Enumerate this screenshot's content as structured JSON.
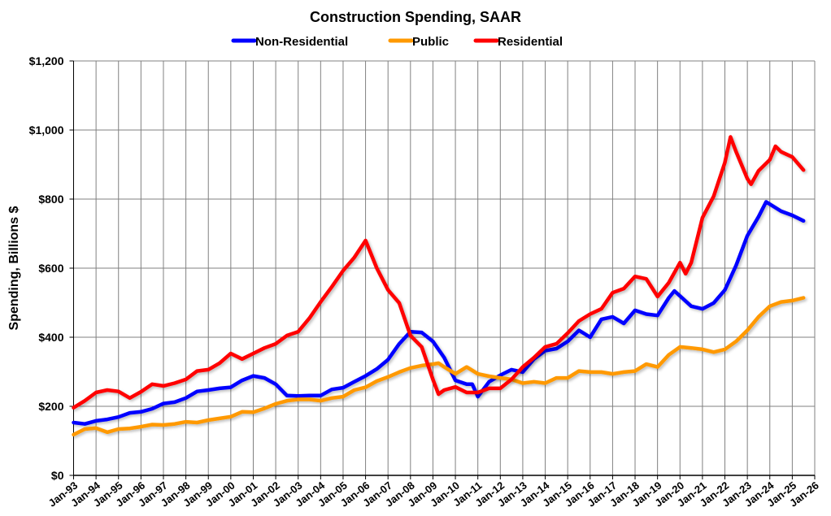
{
  "chart_data": {
    "type": "line",
    "title": "Construction Spending, SAAR",
    "ylabel": "Spending, Billions $",
    "xlabel": "",
    "ylim": [
      0,
      1200
    ],
    "xlim": [
      "1993-01",
      "2026-01"
    ],
    "yticks": [
      0,
      200,
      400,
      600,
      800,
      1000,
      1200
    ],
    "ytick_labels": [
      "$0",
      "$200",
      "$400",
      "$600",
      "$800",
      "$1,000",
      "$1,200"
    ],
    "xtick_labels": [
      "Jan-93",
      "Jan-94",
      "Jan-95",
      "Jan-96",
      "Jan-97",
      "Jan-98",
      "Jan-99",
      "Jan-00",
      "Jan-01",
      "Jan-02",
      "Jan-03",
      "Jan-04",
      "Jan-05",
      "Jan-06",
      "Jan-07",
      "Jan-08",
      "Jan-09",
      "Jan-10",
      "Jan-11",
      "Jan-12",
      "Jan-13",
      "Jan-14",
      "Jan-15",
      "Jan-16",
      "Jan-17",
      "Jan-18",
      "Jan-19",
      "Jan-20",
      "Jan-21",
      "Jan-22",
      "Jan-23",
      "Jan-24",
      "Jan-25",
      "Jan-26"
    ],
    "grid": true,
    "legend_position": "top",
    "series": [
      {
        "name": "Non-Residential",
        "color": "#0000ff",
        "points": [
          [
            "1993-01",
            153
          ],
          [
            "1993-07",
            149
          ],
          [
            "1994-01",
            158
          ],
          [
            "1994-07",
            162
          ],
          [
            "1995-01",
            169
          ],
          [
            "1995-07",
            181
          ],
          [
            "1996-01",
            184
          ],
          [
            "1996-07",
            193
          ],
          [
            "1997-01",
            208
          ],
          [
            "1997-07",
            212
          ],
          [
            "1998-01",
            224
          ],
          [
            "1998-07",
            243
          ],
          [
            "1999-01",
            247
          ],
          [
            "1999-07",
            252
          ],
          [
            "2000-01",
            255
          ],
          [
            "2000-07",
            275
          ],
          [
            "2001-01",
            288
          ],
          [
            "2001-07",
            282
          ],
          [
            "2002-01",
            264
          ],
          [
            "2002-07",
            231
          ],
          [
            "2003-01",
            230
          ],
          [
            "2003-07",
            231
          ],
          [
            "2004-01",
            231
          ],
          [
            "2004-07",
            249
          ],
          [
            "2005-01",
            254
          ],
          [
            "2005-07",
            271
          ],
          [
            "2006-01",
            288
          ],
          [
            "2006-07",
            308
          ],
          [
            "2007-01",
            335
          ],
          [
            "2007-07",
            381
          ],
          [
            "2008-01",
            416
          ],
          [
            "2008-07",
            414
          ],
          [
            "2009-01",
            388
          ],
          [
            "2009-07",
            341
          ],
          [
            "2010-01",
            275
          ],
          [
            "2010-07",
            264
          ],
          [
            "2010-10",
            264
          ],
          [
            "2011-01",
            228
          ],
          [
            "2011-07",
            271
          ],
          [
            "2012-01",
            290
          ],
          [
            "2012-07",
            306
          ],
          [
            "2013-01",
            299
          ],
          [
            "2013-07",
            337
          ],
          [
            "2014-01",
            361
          ],
          [
            "2014-07",
            367
          ],
          [
            "2015-01",
            388
          ],
          [
            "2015-07",
            420
          ],
          [
            "2016-01",
            400
          ],
          [
            "2016-07",
            452
          ],
          [
            "2017-01",
            459
          ],
          [
            "2017-07",
            440
          ],
          [
            "2018-01",
            478
          ],
          [
            "2018-07",
            467
          ],
          [
            "2019-01",
            463
          ],
          [
            "2019-07",
            514
          ],
          [
            "2019-10",
            534
          ],
          [
            "2020-07",
            490
          ],
          [
            "2021-01",
            482
          ],
          [
            "2021-07",
            499
          ],
          [
            "2022-01",
            537
          ],
          [
            "2022-07",
            608
          ],
          [
            "2023-01",
            694
          ],
          [
            "2023-07",
            749
          ],
          [
            "2023-11",
            792
          ],
          [
            "2024-07",
            765
          ],
          [
            "2025-01",
            753
          ],
          [
            "2025-07",
            737
          ]
        ]
      },
      {
        "name": "Public",
        "color": "#ff9900",
        "points": [
          [
            "1993-01",
            118
          ],
          [
            "1993-07",
            134
          ],
          [
            "1994-01",
            137
          ],
          [
            "1994-07",
            125
          ],
          [
            "1995-01",
            134
          ],
          [
            "1995-07",
            136
          ],
          [
            "1996-01",
            141
          ],
          [
            "1996-07",
            147
          ],
          [
            "1997-01",
            146
          ],
          [
            "1997-07",
            149
          ],
          [
            "1998-01",
            155
          ],
          [
            "1998-07",
            153
          ],
          [
            "1999-01",
            160
          ],
          [
            "1999-07",
            165
          ],
          [
            "2000-01",
            170
          ],
          [
            "2000-07",
            184
          ],
          [
            "2001-01",
            183
          ],
          [
            "2001-07",
            194
          ],
          [
            "2002-01",
            207
          ],
          [
            "2002-07",
            216
          ],
          [
            "2003-01",
            220
          ],
          [
            "2003-07",
            220
          ],
          [
            "2004-01",
            216
          ],
          [
            "2004-07",
            224
          ],
          [
            "2005-01",
            228
          ],
          [
            "2005-07",
            247
          ],
          [
            "2006-01",
            255
          ],
          [
            "2006-07",
            273
          ],
          [
            "2007-01",
            285
          ],
          [
            "2007-07",
            299
          ],
          [
            "2008-01",
            311
          ],
          [
            "2008-07",
            318
          ],
          [
            "2009-01",
            322
          ],
          [
            "2009-04",
            325
          ],
          [
            "2009-07",
            314
          ],
          [
            "2010-01",
            294
          ],
          [
            "2010-07",
            314
          ],
          [
            "2011-01",
            294
          ],
          [
            "2011-07",
            287
          ],
          [
            "2012-01",
            282
          ],
          [
            "2012-07",
            278
          ],
          [
            "2013-01",
            267
          ],
          [
            "2013-07",
            271
          ],
          [
            "2014-01",
            267
          ],
          [
            "2014-07",
            282
          ],
          [
            "2015-01",
            282
          ],
          [
            "2015-07",
            302
          ],
          [
            "2016-01",
            299
          ],
          [
            "2016-07",
            299
          ],
          [
            "2017-01",
            294
          ],
          [
            "2017-07",
            299
          ],
          [
            "2018-01",
            302
          ],
          [
            "2018-07",
            322
          ],
          [
            "2019-01",
            314
          ],
          [
            "2019-07",
            349
          ],
          [
            "2020-01",
            372
          ],
          [
            "2020-07",
            369
          ],
          [
            "2021-01",
            365
          ],
          [
            "2021-07",
            357
          ],
          [
            "2022-01",
            365
          ],
          [
            "2022-07",
            388
          ],
          [
            "2023-01",
            420
          ],
          [
            "2023-07",
            459
          ],
          [
            "2024-01",
            490
          ],
          [
            "2024-07",
            502
          ],
          [
            "2025-01",
            506
          ],
          [
            "2025-07",
            514
          ]
        ]
      },
      {
        "name": "Residential",
        "color": "#ff0000",
        "points": [
          [
            "1993-01",
            196
          ],
          [
            "1993-07",
            216
          ],
          [
            "1994-01",
            240
          ],
          [
            "1994-07",
            247
          ],
          [
            "1995-01",
            243
          ],
          [
            "1995-07",
            224
          ],
          [
            "1996-01",
            242
          ],
          [
            "1996-07",
            264
          ],
          [
            "1997-01",
            259
          ],
          [
            "1997-07",
            267
          ],
          [
            "1998-01",
            278
          ],
          [
            "1998-07",
            302
          ],
          [
            "1999-01",
            306
          ],
          [
            "1999-07",
            325
          ],
          [
            "2000-01",
            353
          ],
          [
            "2000-07",
            337
          ],
          [
            "2001-01",
            353
          ],
          [
            "2001-07",
            369
          ],
          [
            "2002-01",
            381
          ],
          [
            "2002-07",
            405
          ],
          [
            "2003-01",
            416
          ],
          [
            "2003-07",
            455
          ],
          [
            "2004-01",
            502
          ],
          [
            "2004-07",
            546
          ],
          [
            "2005-01",
            593
          ],
          [
            "2005-07",
            631
          ],
          [
            "2006-01",
            680
          ],
          [
            "2006-07",
            600
          ],
          [
            "2007-01",
            537
          ],
          [
            "2007-07",
            499
          ],
          [
            "2008-01",
            405
          ],
          [
            "2008-07",
            372
          ],
          [
            "2009-01",
            278
          ],
          [
            "2009-04",
            235
          ],
          [
            "2009-07",
            247
          ],
          [
            "2010-01",
            256
          ],
          [
            "2010-07",
            240
          ],
          [
            "2011-01",
            240
          ],
          [
            "2011-07",
            252
          ],
          [
            "2012-01",
            252
          ],
          [
            "2012-07",
            278
          ],
          [
            "2013-01",
            314
          ],
          [
            "2013-07",
            341
          ],
          [
            "2014-01",
            372
          ],
          [
            "2014-07",
            381
          ],
          [
            "2015-01",
            412
          ],
          [
            "2015-07",
            447
          ],
          [
            "2016-01",
            467
          ],
          [
            "2016-07",
            482
          ],
          [
            "2017-01",
            529
          ],
          [
            "2017-07",
            541
          ],
          [
            "2018-01",
            576
          ],
          [
            "2018-07",
            569
          ],
          [
            "2019-01",
            518
          ],
          [
            "2019-07",
            558
          ],
          [
            "2020-01",
            616
          ],
          [
            "2020-04",
            584
          ],
          [
            "2020-07",
            616
          ],
          [
            "2021-01",
            746
          ],
          [
            "2021-07",
            808
          ],
          [
            "2022-01",
            906
          ],
          [
            "2022-04",
            980
          ],
          [
            "2022-07",
            937
          ],
          [
            "2023-01",
            859
          ],
          [
            "2023-03",
            843
          ],
          [
            "2023-07",
            882
          ],
          [
            "2024-01",
            914
          ],
          [
            "2024-04",
            953
          ],
          [
            "2024-07",
            937
          ],
          [
            "2025-01",
            922
          ],
          [
            "2025-07",
            884
          ]
        ]
      }
    ]
  }
}
